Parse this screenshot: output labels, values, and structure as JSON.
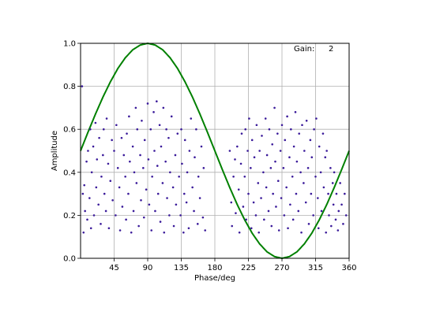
{
  "chart_data": {
    "type": "scatter",
    "title": "",
    "xlabel": "Phase/deg",
    "ylabel": "Amplitude",
    "xlim": [
      0,
      360
    ],
    "ylim": [
      0.0,
      1.0
    ],
    "xticks": [
      45,
      90,
      135,
      180,
      225,
      270,
      315,
      360
    ],
    "xtick_labels": [
      "45",
      "90",
      "135",
      "180",
      "225",
      "270",
      "315",
      "360"
    ],
    "yticks": [
      0.0,
      0.2,
      0.4,
      0.6,
      0.8,
      1.0
    ],
    "ytick_labels": [
      "0.0",
      "0.2",
      "0.4",
      "0.6",
      "0.8",
      "1.0"
    ],
    "grid": true,
    "annotation": {
      "label": "Gain:",
      "value": "2"
    },
    "curve": {
      "formula": "0.5 + 0.5*sin(phase)",
      "x": [
        0,
        10,
        20,
        30,
        40,
        50,
        60,
        70,
        80,
        90,
        100,
        110,
        120,
        130,
        140,
        150,
        160,
        170,
        180,
        190,
        200,
        210,
        220,
        230,
        240,
        250,
        260,
        270,
        280,
        290,
        300,
        310,
        320,
        330,
        340,
        350,
        360
      ],
      "y": [
        0.5,
        0.587,
        0.671,
        0.75,
        0.821,
        0.883,
        0.933,
        0.97,
        0.992,
        1.0,
        0.992,
        0.97,
        0.933,
        0.883,
        0.821,
        0.75,
        0.671,
        0.587,
        0.5,
        0.413,
        0.329,
        0.25,
        0.179,
        0.117,
        0.067,
        0.03,
        0.008,
        0.0,
        0.008,
        0.03,
        0.067,
        0.117,
        0.179,
        0.25,
        0.329,
        0.413,
        0.5
      ],
      "color": "#008000"
    },
    "scatter": {
      "color": "#3a1a9a",
      "points": [
        [
          2,
          0.8
        ],
        [
          3,
          0.3
        ],
        [
          4,
          0.12
        ],
        [
          5,
          0.34
        ],
        [
          6,
          0.22
        ],
        [
          8,
          0.45
        ],
        [
          9,
          0.18
        ],
        [
          10,
          0.5
        ],
        [
          12,
          0.28
        ],
        [
          13,
          0.6
        ],
        [
          14,
          0.14
        ],
        [
          15,
          0.4
        ],
        [
          17,
          0.52
        ],
        [
          18,
          0.2
        ],
        [
          20,
          0.63
        ],
        [
          21,
          0.33
        ],
        [
          22,
          0.46
        ],
        [
          24,
          0.25
        ],
        [
          25,
          0.56
        ],
        [
          27,
          0.16
        ],
        [
          28,
          0.38
        ],
        [
          30,
          0.48
        ],
        [
          31,
          0.6
        ],
        [
          32,
          0.3
        ],
        [
          34,
          0.22
        ],
        [
          35,
          0.65
        ],
        [
          37,
          0.44
        ],
        [
          38,
          0.14
        ],
        [
          40,
          0.36
        ],
        [
          42,
          0.55
        ],
        [
          43,
          0.27
        ],
        [
          45,
          0.5
        ],
        [
          47,
          0.2
        ],
        [
          48,
          0.62
        ],
        [
          50,
          0.42
        ],
        [
          52,
          0.33
        ],
        [
          53,
          0.13
        ],
        [
          55,
          0.56
        ],
        [
          56,
          0.24
        ],
        [
          58,
          0.48
        ],
        [
          60,
          0.38
        ],
        [
          61,
          0.18
        ],
        [
          62,
          0.58
        ],
        [
          64,
          0.3
        ],
        [
          65,
          0.66
        ],
        [
          66,
          0.45
        ],
        [
          68,
          0.12
        ],
        [
          70,
          0.52
        ],
        [
          71,
          0.22
        ],
        [
          72,
          0.4
        ],
        [
          74,
          0.7
        ],
        [
          75,
          0.35
        ],
        [
          76,
          0.6
        ],
        [
          78,
          0.15
        ],
        [
          80,
          0.48
        ],
        [
          81,
          0.27
        ],
        [
          82,
          0.64
        ],
        [
          84,
          0.42
        ],
        [
          85,
          0.19
        ],
        [
          86,
          0.55
        ],
        [
          88,
          0.32
        ],
        [
          90,
          0.72
        ],
        [
          91,
          0.46
        ],
        [
          92,
          0.25
        ],
        [
          94,
          0.6
        ],
        [
          95,
          0.13
        ],
        [
          96,
          0.38
        ],
        [
          98,
          0.68
        ],
        [
          99,
          0.5
        ],
        [
          100,
          0.22
        ],
        [
          102,
          0.73
        ],
        [
          103,
          0.43
        ],
        [
          104,
          0.3
        ],
        [
          106,
          0.62
        ],
        [
          107,
          0.17
        ],
        [
          108,
          0.52
        ],
        [
          110,
          0.35
        ],
        [
          111,
          0.7
        ],
        [
          112,
          0.12
        ],
        [
          114,
          0.45
        ],
        [
          115,
          0.6
        ],
        [
          116,
          0.28
        ],
        [
          118,
          0.56
        ],
        [
          119,
          0.2
        ],
        [
          120,
          0.4
        ],
        [
          122,
          0.66
        ],
        [
          124,
          0.33
        ],
        [
          125,
          0.15
        ],
        [
          127,
          0.48
        ],
        [
          128,
          0.25
        ],
        [
          130,
          0.58
        ],
        [
          132,
          0.38
        ],
        [
          134,
          0.2
        ],
        [
          135,
          0.6
        ],
        [
          136,
          0.44
        ],
        [
          138,
          0.12
        ],
        [
          139,
          0.3
        ],
        [
          140,
          0.55
        ],
        [
          142,
          0.26
        ],
        [
          143,
          0.4
        ],
        [
          145,
          0.14
        ],
        [
          146,
          0.5
        ],
        [
          148,
          0.65
        ],
        [
          150,
          0.33
        ],
        [
          152,
          0.22
        ],
        [
          153,
          0.47
        ],
        [
          155,
          0.6
        ],
        [
          157,
          0.16
        ],
        [
          158,
          0.38
        ],
        [
          160,
          0.28
        ],
        [
          162,
          0.52
        ],
        [
          164,
          0.19
        ],
        [
          165,
          0.42
        ],
        [
          167,
          0.13
        ],
        [
          200,
          0.5
        ],
        [
          202,
          0.26
        ],
        [
          203,
          0.15
        ],
        [
          205,
          0.38
        ],
        [
          207,
          0.46
        ],
        [
          208,
          0.21
        ],
        [
          210,
          0.52
        ],
        [
          212,
          0.32
        ],
        [
          213,
          0.12
        ],
        [
          215,
          0.44
        ],
        [
          216,
          0.58
        ],
        [
          218,
          0.24
        ],
        [
          220,
          0.38
        ],
        [
          221,
          0.6
        ],
        [
          222,
          0.18
        ],
        [
          224,
          0.5
        ],
        [
          225,
          0.3
        ],
        [
          226,
          0.65
        ],
        [
          228,
          0.42
        ],
        [
          229,
          0.14
        ],
        [
          230,
          0.55
        ],
        [
          232,
          0.26
        ],
        [
          233,
          0.47
        ],
        [
          235,
          0.2
        ],
        [
          236,
          0.62
        ],
        [
          238,
          0.35
        ],
        [
          239,
          0.12
        ],
        [
          240,
          0.5
        ],
        [
          242,
          0.28
        ],
        [
          243,
          0.57
        ],
        [
          245,
          0.4
        ],
        [
          246,
          0.18
        ],
        [
          248,
          0.65
        ],
        [
          249,
          0.33
        ],
        [
          250,
          0.48
        ],
        [
          252,
          0.22
        ],
        [
          253,
          0.6
        ],
        [
          255,
          0.42
        ],
        [
          256,
          0.15
        ],
        [
          257,
          0.53
        ],
        [
          258,
          0.3
        ],
        [
          260,
          0.7
        ],
        [
          261,
          0.45
        ],
        [
          262,
          0.24
        ],
        [
          264,
          0.58
        ],
        [
          265,
          0.36
        ],
        [
          266,
          0.13
        ],
        [
          268,
          0.5
        ],
        [
          269,
          0.28
        ],
        [
          270,
          0.62
        ],
        [
          272,
          0.42
        ],
        [
          273,
          0.2
        ],
        [
          274,
          0.55
        ],
        [
          276,
          0.33
        ],
        [
          277,
          0.66
        ],
        [
          278,
          0.14
        ],
        [
          280,
          0.47
        ],
        [
          281,
          0.25
        ],
        [
          282,
          0.6
        ],
        [
          284,
          0.38
        ],
        [
          285,
          0.18
        ],
        [
          286,
          0.52
        ],
        [
          288,
          0.68
        ],
        [
          289,
          0.3
        ],
        [
          290,
          0.45
        ],
        [
          292,
          0.22
        ],
        [
          293,
          0.58
        ],
        [
          295,
          0.4
        ],
        [
          296,
          0.12
        ],
        [
          297,
          0.62
        ],
        [
          299,
          0.35
        ],
        [
          300,
          0.5
        ],
        [
          302,
          0.26
        ],
        [
          303,
          0.64
        ],
        [
          305,
          0.42
        ],
        [
          306,
          0.16
        ],
        [
          308,
          0.55
        ],
        [
          309,
          0.3
        ],
        [
          310,
          0.47
        ],
        [
          312,
          0.2
        ],
        [
          313,
          0.6
        ],
        [
          315,
          0.38
        ],
        [
          316,
          0.65
        ],
        [
          318,
          0.28
        ],
        [
          319,
          0.14
        ],
        [
          320,
          0.52
        ],
        [
          322,
          0.4
        ],
        [
          323,
          0.22
        ],
        [
          325,
          0.58
        ],
        [
          326,
          0.33
        ],
        [
          328,
          0.47
        ],
        [
          329,
          0.12
        ],
        [
          330,
          0.5
        ],
        [
          332,
          0.3
        ],
        [
          333,
          0.2
        ],
        [
          335,
          0.42
        ],
        [
          336,
          0.15
        ],
        [
          338,
          0.35
        ],
        [
          339,
          0.25
        ],
        [
          340,
          0.4
        ],
        [
          342,
          0.18
        ],
        [
          343,
          0.3
        ],
        [
          345,
          0.13
        ],
        [
          346,
          0.22
        ],
        [
          348,
          0.35
        ],
        [
          350,
          0.25
        ],
        [
          352,
          0.16
        ],
        [
          354,
          0.3
        ],
        [
          356,
          0.2
        ]
      ]
    }
  }
}
